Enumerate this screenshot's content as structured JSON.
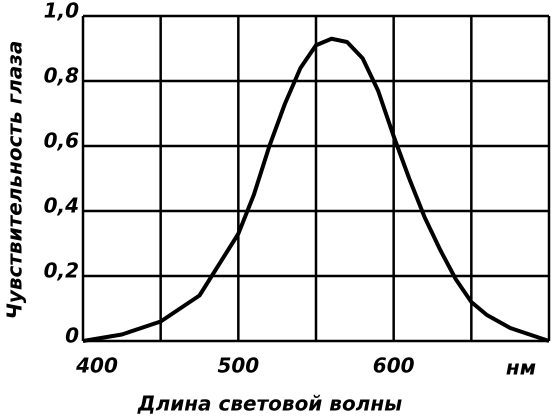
{
  "chart_data": {
    "type": "line",
    "xlabel": "Длина световой волны",
    "ylabel": "Чувствительность глаза",
    "x_unit": "нм",
    "x": [
      400,
      425,
      450,
      475,
      500,
      510,
      520,
      530,
      540,
      550,
      560,
      570,
      580,
      590,
      600,
      610,
      620,
      630,
      640,
      650,
      660,
      675,
      700
    ],
    "series": [
      {
        "name": "Чувствительность глаза",
        "color": "#000000",
        "values": [
          0,
          0.02,
          0.06,
          0.14,
          0.33,
          0.45,
          0.6,
          0.73,
          0.84,
          0.91,
          0.93,
          0.92,
          0.87,
          0.77,
          0.63,
          0.5,
          0.38,
          0.28,
          0.19,
          0.12,
          0.08,
          0.04,
          0
        ]
      }
    ],
    "xlim": [
      400,
      700
    ],
    "ylim": [
      0,
      1
    ],
    "xticks": [
      400,
      500,
      600
    ],
    "xgrid": [
      400,
      450,
      500,
      550,
      600,
      650,
      700
    ],
    "yticks": [
      0,
      {
        "value": 0.2,
        "label": "0,2"
      },
      {
        "value": 0.4,
        "label": "0,4"
      },
      {
        "value": 0.6,
        "label": "0,6"
      },
      {
        "value": 0.8,
        "label": "0,8"
      },
      {
        "value": 1,
        "label": "1,0"
      }
    ],
    "grid": true
  }
}
